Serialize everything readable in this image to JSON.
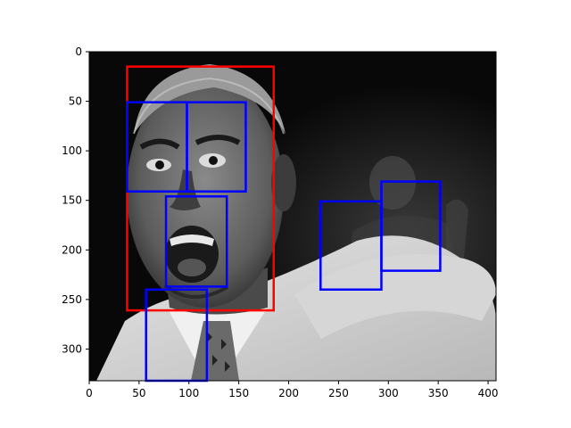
{
  "figure": {
    "image_content": "grayscale photo of a shouting man in a white shirt and patterned tie",
    "x_range": [
      0,
      408
    ],
    "y_range": [
      332,
      0
    ],
    "x_ticks": [
      0,
      50,
      100,
      150,
      200,
      250,
      300,
      350,
      400
    ],
    "y_ticks": [
      0,
      50,
      100,
      150,
      200,
      250,
      300
    ],
    "colors": {
      "face_box": "#ff0000",
      "feature_box": "#0000ff",
      "axes": "#000000"
    },
    "face_boxes": [
      {
        "x0": 38,
        "y0": 15,
        "x1": 185,
        "y1": 261
      }
    ],
    "feature_boxes": [
      {
        "x0": 38,
        "y0": 51,
        "x1": 98,
        "y1": 141
      },
      {
        "x0": 98,
        "y0": 51,
        "x1": 157,
        "y1": 141
      },
      {
        "x0": 77,
        "y0": 146,
        "x1": 138,
        "y1": 237
      },
      {
        "x0": 57,
        "y0": 240,
        "x1": 118,
        "y1": 332
      },
      {
        "x0": 232,
        "y0": 151,
        "x1": 293,
        "y1": 240
      },
      {
        "x0": 293,
        "y0": 131,
        "x1": 352,
        "y1": 221
      }
    ]
  }
}
